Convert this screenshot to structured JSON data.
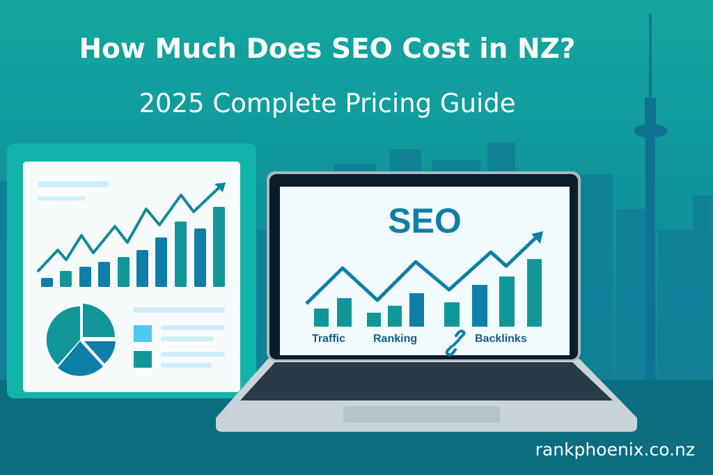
{
  "header": {
    "title": "How Much Does SEO Cost in NZ?",
    "subtitle": "2025 Complete Pricing Guide"
  },
  "laptop": {
    "screen_title": "SEO",
    "labels": [
      "Traffic",
      "Ranking",
      "Backlinks"
    ],
    "icons": [
      "link-icon",
      "trend-arrow-icon"
    ]
  },
  "report_card": {
    "icons": [
      "bar-chart-icon",
      "pie-chart-icon",
      "trend-arrow-icon"
    ]
  },
  "footer": {
    "url": "rankphoenix.co.nz"
  },
  "colors": {
    "background_top": "#13a79f",
    "background_bottom": "#0e7f90",
    "teal": "#11979a",
    "blue": "#0e7fa8",
    "card_frame": "#12b3a8",
    "light_blue": "#4cc9f0"
  }
}
